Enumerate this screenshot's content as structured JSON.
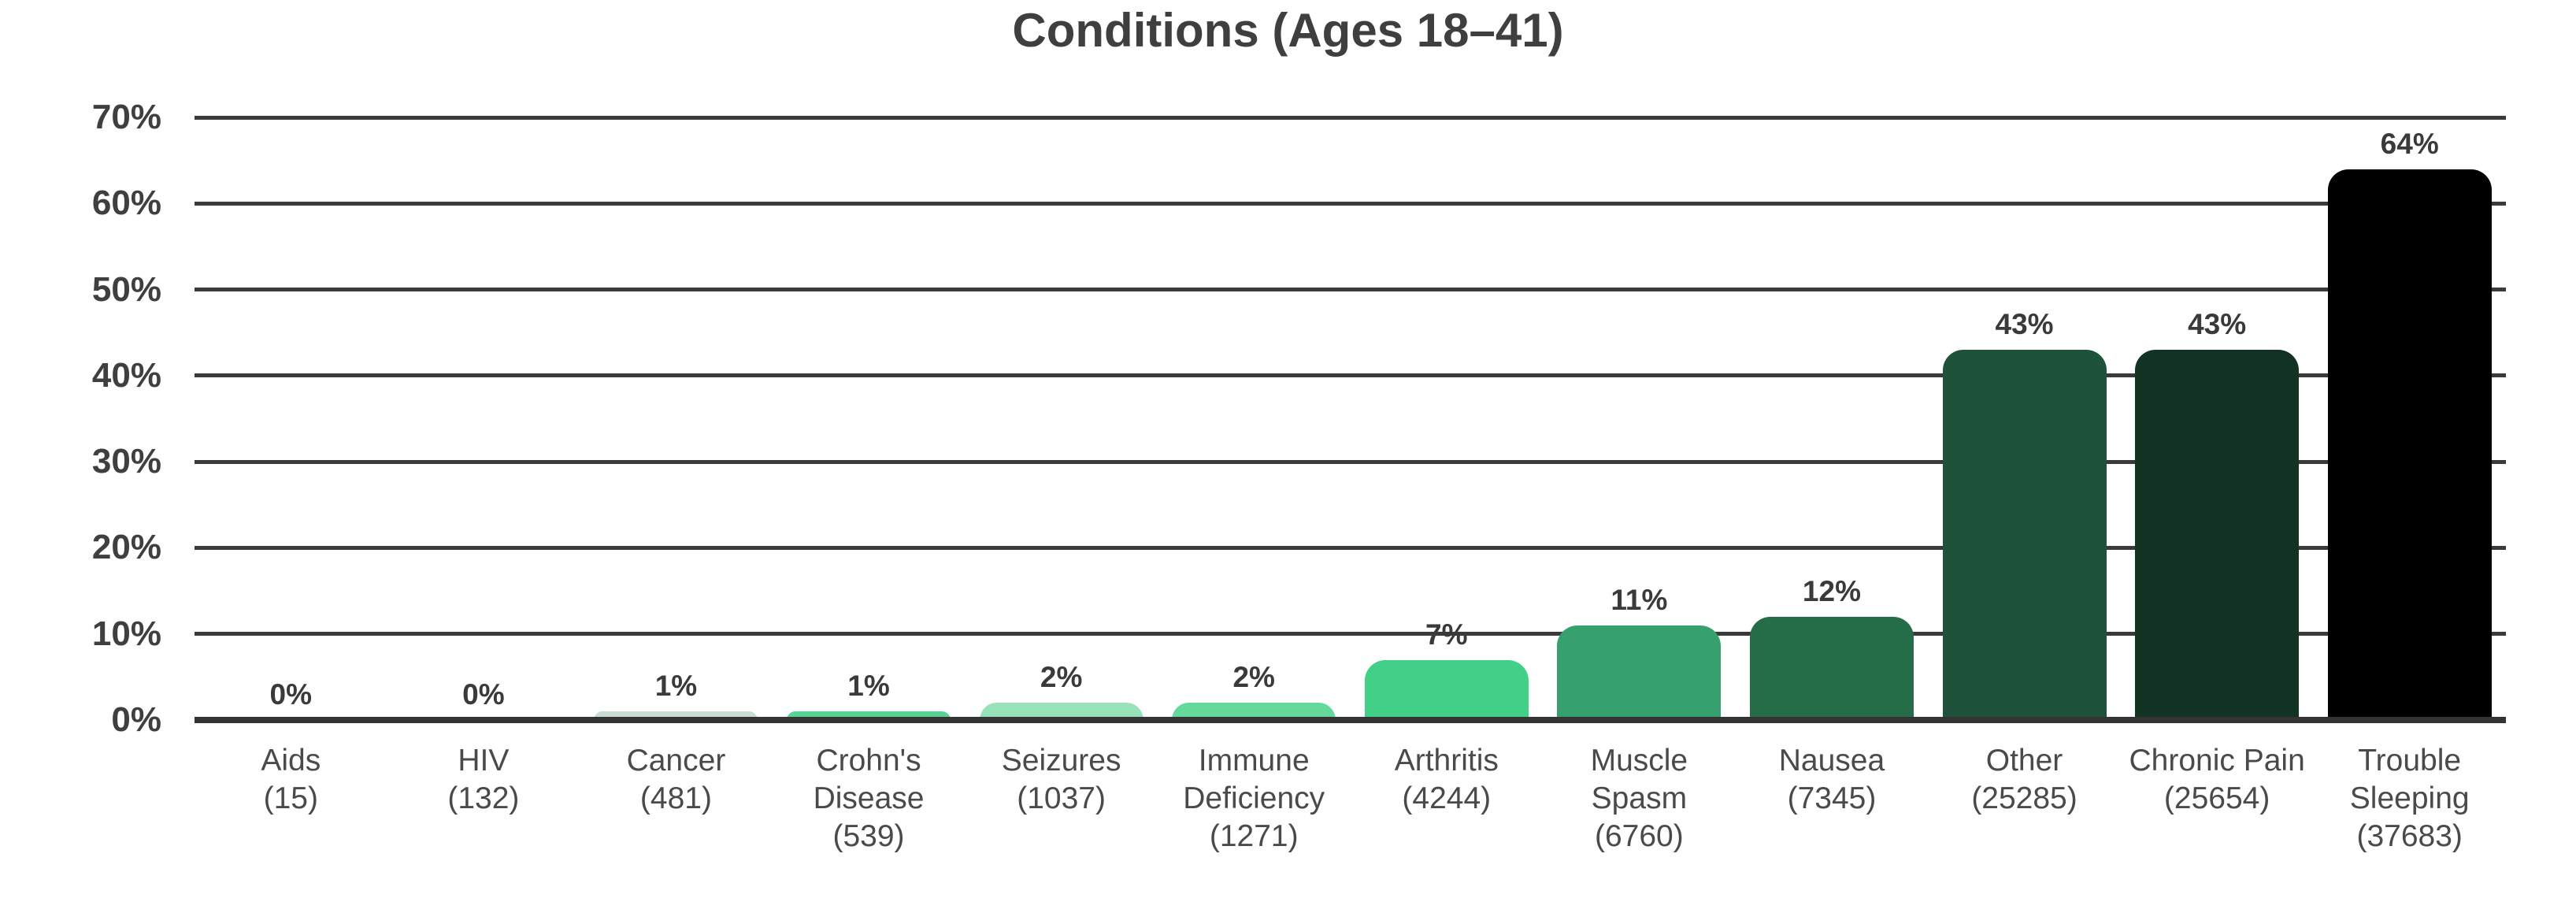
{
  "chart": {
    "title": "Conditions (Ages 18–41)"
  },
  "colors": {
    "background": "#ffffff",
    "grid": "#3a3a3a",
    "axis": "#333333",
    "title_text": "#3f3f3f",
    "tick_text": "#3f3f3f",
    "value_text": "#3a3a3a",
    "category_text": "#4a4a4a"
  },
  "chart_data": {
    "type": "bar",
    "title": "Conditions (Ages 18–41)",
    "xlabel": "",
    "ylabel": "",
    "ylim": [
      0,
      70
    ],
    "grid": true,
    "legend": false,
    "y_ticks_top_down": [
      "70%",
      "60%",
      "50%",
      "40%",
      "30%",
      "20%",
      "10%",
      "0%"
    ],
    "categories": [
      "Aids",
      "HIV",
      "Cancer",
      "Crohn's Disease",
      "Seizures",
      "Immune Deficiency",
      "Arthritis",
      "Muscle Spasm",
      "Nausea",
      "Other",
      "Chronic Pain",
      "Trouble Sleeping"
    ],
    "counts": [
      15,
      132,
      481,
      539,
      1037,
      1271,
      4244,
      6760,
      7345,
      25285,
      25654,
      37683
    ],
    "values": [
      0,
      0,
      1,
      1,
      2,
      2,
      7,
      11,
      12,
      43,
      43,
      64
    ],
    "value_labels": [
      "0%",
      "0%",
      "1%",
      "1%",
      "2%",
      "2%",
      "7%",
      "11%",
      "12%",
      "43%",
      "43%",
      "64%"
    ],
    "bar_colors": [
      "#cbdcd3",
      "#cbdcd3",
      "#cbdcd3",
      "#57d492",
      "#98e2ba",
      "#64d99a",
      "#42d088",
      "#37a06f",
      "#256c49",
      "#1f523a",
      "#123323",
      "#000000"
    ]
  }
}
